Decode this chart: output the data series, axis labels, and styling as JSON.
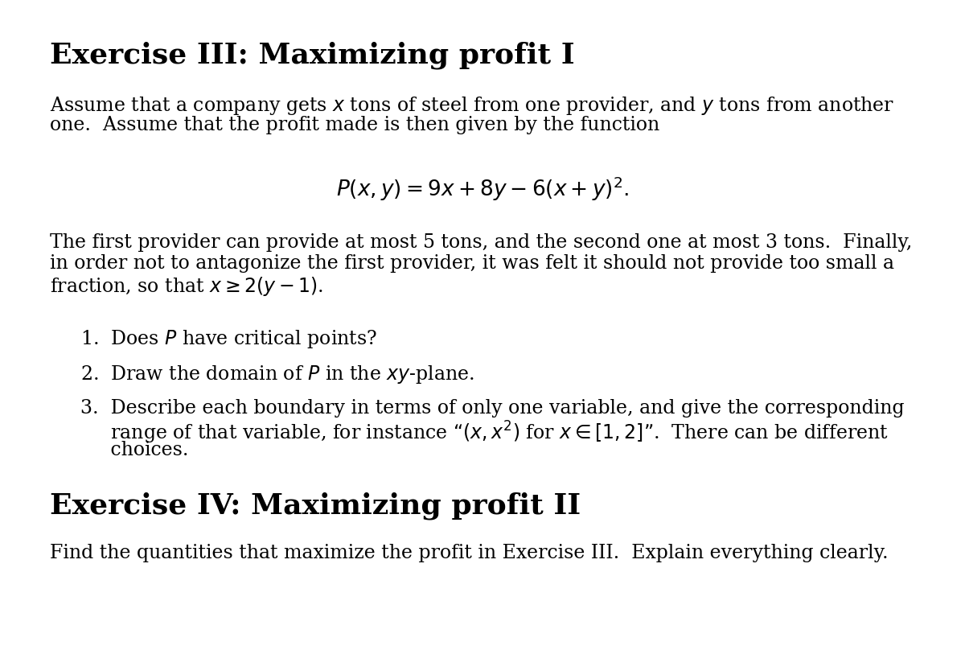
{
  "bg_color": "#ffffff",
  "title1": "Exercise III: Maximizing profit I",
  "title2": "Exercise IV: Maximizing profit II",
  "body_lines_ex3": [
    "Assume that a company gets $x$ tons of steel from one provider, and $y$ tons from another",
    "one.  Assume that the profit made is then given by the function"
  ],
  "formula": "$P(x, y) = 9x + 8y - 6(x + y)^2.$",
  "body_lines_ex3b": [
    "The first provider can provide at most 5 tons, and the second one at most 3 tons.  Finally,",
    "in order not to antagonize the first provider, it was felt it should not provide too small a",
    "fraction, so that $x \\geq 2(y - 1)$."
  ],
  "item1": "1.  Does $P$ have critical points?",
  "item2": "2.  Draw the domain of $P$ in the $xy$-plane.",
  "item3_line1": "3.  Describe each boundary in terms of only one variable, and give the corresponding",
  "item3_line2": "     range of that variable, for instance “$(x, x^2)$ for $x \\in [1, 2]$”.  There can be different",
  "item3_line3": "     choices.",
  "body_ex4": "Find the quantities that maximize the profit in Exercise III.  Explain everything clearly."
}
